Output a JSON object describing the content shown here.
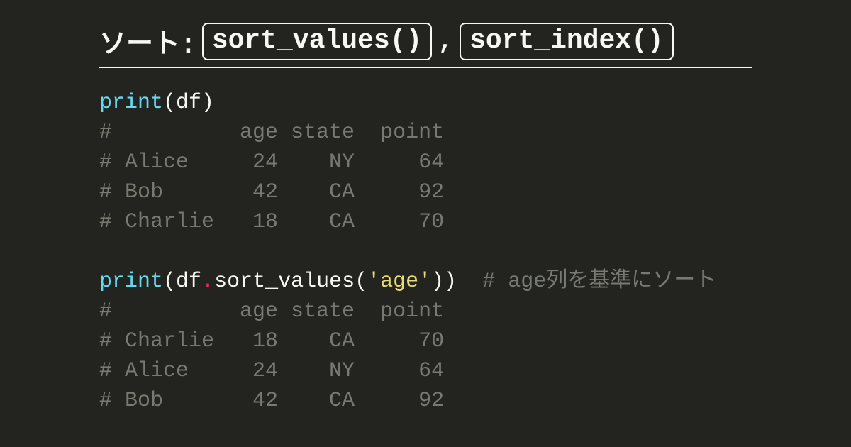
{
  "colors": {
    "background": "#23241f",
    "foreground": "#f8f8f2",
    "function": "#66d9ef",
    "punct": "#f8f8f2",
    "identifier": "#f8f8f2",
    "operator_dot": "#f92672",
    "string": "#e6db74",
    "comment": "#777a71",
    "border": "#f8f8f2"
  },
  "typography": {
    "title_fontsize": 38,
    "code_fontsize": 30,
    "font_family": "Consolas, Monaco, Courier New, monospace",
    "title_font_weight": 700
  },
  "title": {
    "label": "ソート:",
    "pill1": "sort_values()",
    "comma": ",",
    "pill2": "sort_index()"
  },
  "code": {
    "line1": {
      "fn": "print",
      "open": "(",
      "arg": "df",
      "close": ")"
    },
    "out1": {
      "r0": "#          age state  point",
      "r1": "# Alice     24    NY     64",
      "r2": "# Bob       42    CA     92",
      "r3": "# Charlie   18    CA     70"
    },
    "blank": "",
    "line2": {
      "fn": "print",
      "open": "(",
      "obj": "df",
      "dot": ".",
      "method": "sort_values",
      "open2": "(",
      "str": "'age'",
      "close2": ")",
      "close": ")",
      "trail": "  ",
      "comment": "# age列を基準にソート"
    },
    "out2": {
      "r0": "#          age state  point",
      "r1": "# Charlie   18    CA     70",
      "r2": "# Alice     24    NY     64",
      "r3": "# Bob       42    CA     92"
    }
  }
}
